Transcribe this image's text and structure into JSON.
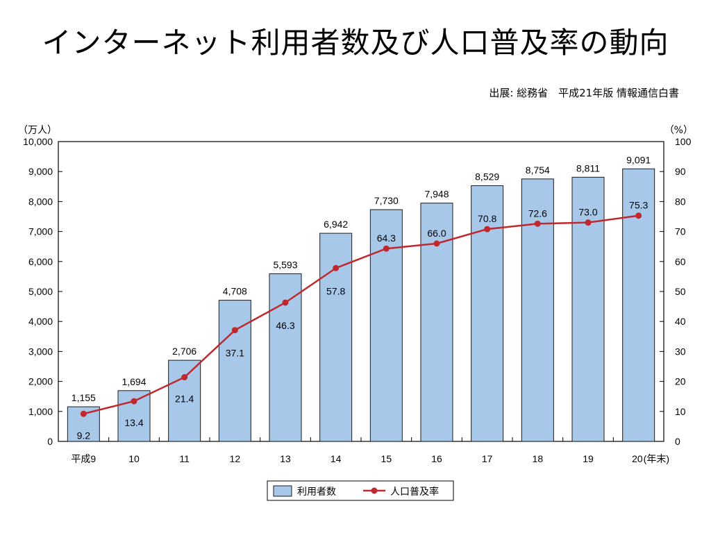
{
  "slide": {
    "title": "インターネット利用者数及び人口普及率の動向",
    "source": "出展: 総務省　平成21年版 情報通信白書"
  },
  "chart_data": {
    "type": "bar",
    "categories": [
      "平成9",
      "10",
      "11",
      "12",
      "13",
      "14",
      "15",
      "16",
      "17",
      "18",
      "19",
      "20"
    ],
    "x_suffix": "(年末)",
    "series": [
      {
        "name": "利用者数",
        "type": "bar",
        "axis": "left",
        "values": [
          1155,
          1694,
          2706,
          4708,
          5593,
          6942,
          7730,
          7948,
          8529,
          8754,
          8811,
          9091
        ],
        "labels": [
          "1,155",
          "1,694",
          "2,706",
          "4,708",
          "5,593",
          "6,942",
          "7,730",
          "7,948",
          "8,529",
          "8,754",
          "8,811",
          "9,091"
        ],
        "color": "#a8c8ea"
      },
      {
        "name": "人口普及率",
        "type": "line",
        "axis": "right",
        "values": [
          9.2,
          13.4,
          21.4,
          37.1,
          46.3,
          57.8,
          64.3,
          66.0,
          70.8,
          72.6,
          73.0,
          75.3
        ],
        "labels": [
          "9.2",
          "13.4",
          "21.4",
          "37.1",
          "46.3",
          "57.8",
          "64.3",
          "66.0",
          "70.8",
          "72.6",
          "73.0",
          "75.3"
        ],
        "color": "#c0282d"
      }
    ],
    "y_left": {
      "unit": "（万人）",
      "ylim": [
        0,
        10000
      ],
      "ticks": [
        "0",
        "1,000",
        "2,000",
        "3,000",
        "4,000",
        "5,000",
        "6,000",
        "7,000",
        "8,000",
        "9,000",
        "10,000"
      ]
    },
    "y_right": {
      "unit": "（%）",
      "ylim": [
        0,
        100
      ],
      "ticks": [
        "0",
        "10",
        "20",
        "30",
        "40",
        "50",
        "60",
        "70",
        "80",
        "90",
        "100"
      ]
    },
    "grid": false,
    "legend_position": "bottom-center"
  }
}
